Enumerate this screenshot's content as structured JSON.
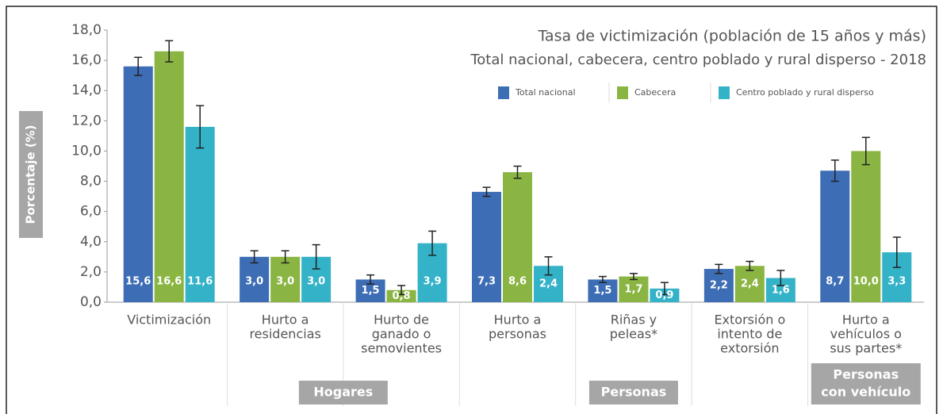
{
  "chart_data": {
    "type": "bar",
    "title": "Tasa de victimización (población de 15 años y más)",
    "subtitle": "Total nacional, cabecera, centro poblado y rural disperso - 2018",
    "y_label": "Porcentaje (%)",
    "categories": [
      [
        "Victimización"
      ],
      [
        "Hurto a",
        "residencias"
      ],
      [
        "Hurto de",
        "ganado o",
        "semovientes"
      ],
      [
        "Hurto a",
        "personas"
      ],
      [
        "Riñas y",
        "peleas*"
      ],
      [
        "Extorsión o",
        "intento de",
        "extorsión"
      ],
      [
        "Hurto a",
        "vehículos o",
        "sus partes*"
      ]
    ],
    "groups": [
      [
        "Hogares"
      ],
      [
        "Personas"
      ],
      [
        "Personas",
        "con vehículo"
      ]
    ],
    "series": [
      {
        "name": "Total nacional",
        "color": "#3d6db5",
        "values": [
          15.6,
          3.0,
          1.5,
          7.3,
          1.5,
          2.2,
          8.7
        ],
        "value_labels": [
          "15,6",
          "3,0",
          "1,5",
          "7,3",
          "1,5",
          "2,2",
          "8,7"
        ],
        "errors": [
          0.6,
          0.4,
          0.3,
          0.3,
          0.2,
          0.3,
          0.7
        ]
      },
      {
        "name": "Cabecera",
        "color": "#8ab543",
        "values": [
          16.6,
          3.0,
          0.8,
          8.6,
          1.7,
          2.4,
          10.0
        ],
        "value_labels": [
          "16,6",
          "3,0",
          "0,8",
          "8,6",
          "1,7",
          "2,4",
          "10,0"
        ],
        "errors": [
          0.7,
          0.4,
          0.3,
          0.4,
          0.2,
          0.3,
          0.9
        ]
      },
      {
        "name": "Centro poblado y rural disperso",
        "color": "#33b2c8",
        "values": [
          11.6,
          3.0,
          3.9,
          2.4,
          0.9,
          1.6,
          3.3
        ],
        "value_labels": [
          "11,6",
          "3,0",
          "3,9",
          "2,4",
          "0,9",
          "1,6",
          "3,3"
        ],
        "errors": [
          1.4,
          0.8,
          0.8,
          0.6,
          0.4,
          0.5,
          1.0
        ]
      }
    ],
    "ylim": [
      0,
      18
    ],
    "yticks": [
      {
        "value": 0,
        "label": "0,0"
      },
      {
        "value": 2,
        "label": "2,0"
      },
      {
        "value": 4,
        "label": "4,0"
      },
      {
        "value": 6,
        "label": "6,0"
      },
      {
        "value": 8,
        "label": "8,0"
      },
      {
        "value": 10,
        "label": "10,0"
      },
      {
        "value": 12,
        "label": "12,0"
      },
      {
        "value": 14,
        "label": "14,0"
      },
      {
        "value": 16,
        "label": "16,0"
      },
      {
        "value": 18,
        "label": "18,0"
      }
    ],
    "legend": "top-right"
  }
}
